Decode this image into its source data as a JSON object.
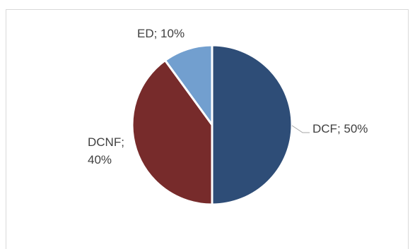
{
  "chart_data": {
    "type": "pie",
    "slices": [
      {
        "name": "DCF",
        "value": 50,
        "label": "DCF; 50%",
        "color": "#2e4d77"
      },
      {
        "name": "DCNF",
        "value": 40,
        "label_lines": [
          "DCNF;",
          "40%"
        ],
        "color": "#772b2b"
      },
      {
        "name": "ED",
        "value": 10,
        "label": "ED; 10%",
        "color": "#729fcf"
      }
    ],
    "start_angle_deg": 0,
    "direction": "clockwise",
    "legend": "none"
  }
}
